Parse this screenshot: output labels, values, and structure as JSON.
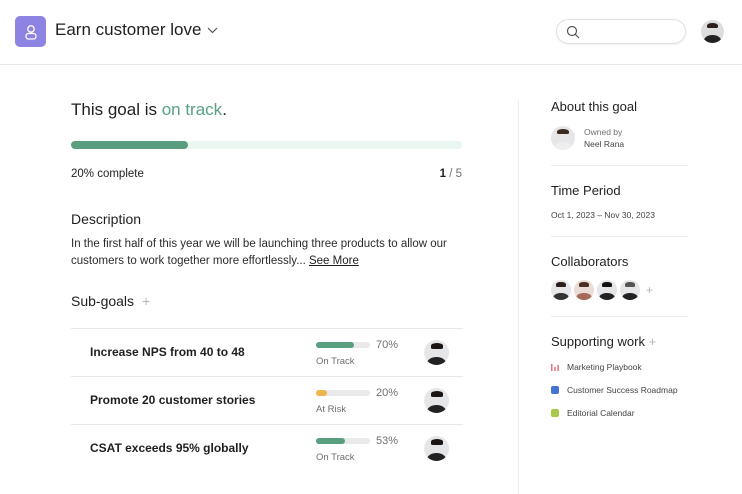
{
  "header": {
    "title": "Earn customer love",
    "logo_icon": "goal-person-icon",
    "search_placeholder": "",
    "accent": "#8d83e3"
  },
  "goal": {
    "status_prefix": "This goal is ",
    "status": "on track",
    "status_suffix": ".",
    "progress_percent": 20,
    "progress_label": "20% complete",
    "progress_current": "1",
    "progress_total": " / 5",
    "status_color": "#58a182"
  },
  "description": {
    "heading": "Description",
    "text": "In the first half of this year we will be launching three products to allow our customers to work together more effortlessly...",
    "see_more": "See More"
  },
  "subgoals": {
    "heading": "Sub-goals",
    "add": "+",
    "items": [
      {
        "name": "Increase NPS from 40 to 48",
        "percent_label": "70%",
        "progress": 70,
        "status": "On Track",
        "color": "#5a9e80"
      },
      {
        "name": "Promote 20 customer stories",
        "percent_label": "20%",
        "progress": 20,
        "status": "At Risk",
        "color": "#f0b44e"
      },
      {
        "name": "CSAT exceeds 95% globally",
        "percent_label": "53%",
        "progress": 53,
        "status": "On Track",
        "color": "#5a9e80"
      }
    ]
  },
  "sidebar": {
    "about": {
      "heading": "About this goal",
      "owned_by": "Owned by",
      "owner": "Neel Rana"
    },
    "time": {
      "heading": "Time Period",
      "range": "Oct 1, 2023 – Nov 30, 2023"
    },
    "collaborators": {
      "heading": "Collaborators",
      "add": "+"
    },
    "supporting": {
      "heading": "Supporting work",
      "add": "+",
      "items": [
        {
          "label": "Marketing Playbook",
          "icon": "bar-chart-icon",
          "color": "#e0727f"
        },
        {
          "label": "Customer Success Roadmap",
          "icon": "project-square-icon",
          "color": "#4573d2"
        },
        {
          "label": "Editorial Calendar",
          "icon": "project-square-icon",
          "color": "#a8c84a"
        }
      ]
    }
  }
}
